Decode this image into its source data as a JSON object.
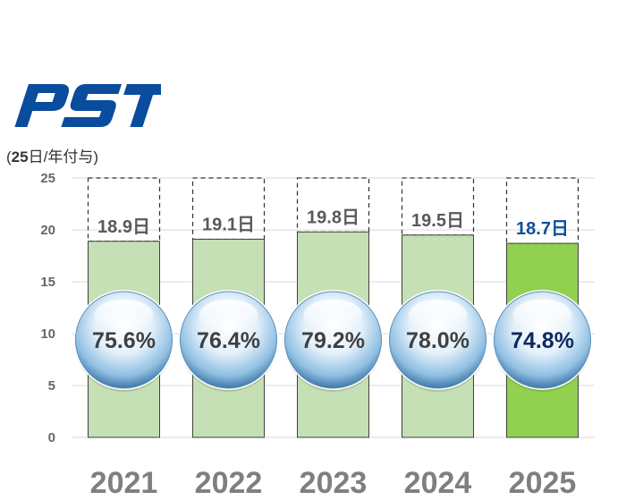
{
  "logo": {
    "text": "PST",
    "color": "#0a4c9e"
  },
  "unit_label": {
    "prefix": "(",
    "bold": "25",
    "suffix": "日/年付与)"
  },
  "colors": {
    "bar": "#c5e0b4",
    "bar_highlight": "#92d050",
    "bar_border": "#404040",
    "capacity_dash": "#303030",
    "value_text": "#595959",
    "value_text_highlight": "#0b4f9c",
    "pct_text": "#404040",
    "pct_text_highlight": "#10275e",
    "grid": "#d9d9d9",
    "year_text": "#7f7f7f"
  },
  "chart_data": {
    "type": "bar",
    "categories": [
      "2021",
      "2022",
      "2023",
      "2024",
      "2025"
    ],
    "values": [
      18.9,
      19.1,
      19.8,
      19.5,
      18.7
    ],
    "value_labels": [
      "18.9日",
      "19.1日",
      "19.8日",
      "19.5日",
      "18.7日"
    ],
    "capacity": 25,
    "rates": [
      "75.6%",
      "76.4%",
      "79.2%",
      "78.0%",
      "74.8%"
    ],
    "highlight_index": 4,
    "ylim": [
      0,
      25
    ],
    "yticks": [
      0,
      5,
      10,
      15,
      20,
      25
    ],
    "grid": true,
    "legend": "none"
  }
}
